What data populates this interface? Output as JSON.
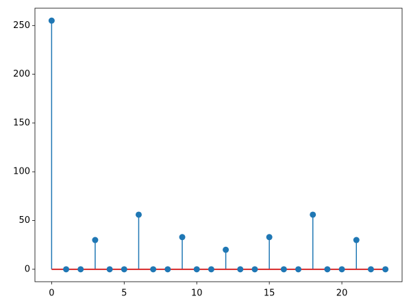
{
  "chart_data": {
    "type": "stem",
    "x": [
      0,
      1,
      2,
      3,
      4,
      5,
      6,
      7,
      8,
      9,
      10,
      11,
      12,
      13,
      14,
      15,
      16,
      17,
      18,
      19,
      20,
      21,
      22,
      23
    ],
    "values": [
      255,
      0,
      0,
      30,
      0,
      0,
      56,
      0,
      0,
      33,
      0,
      0,
      20,
      0,
      0,
      33,
      0,
      0,
      56,
      0,
      0,
      30,
      0,
      0
    ],
    "color": "#1f77b4",
    "baseline": 0,
    "baseline_color": "#d62728",
    "xlim": [
      -1.15,
      24.15
    ],
    "xticks": [
      0,
      5,
      10,
      15,
      20
    ],
    "ylim": [
      -12.75,
      267.75
    ],
    "yticks": [
      0,
      50,
      100,
      150,
      200,
      250
    ]
  }
}
